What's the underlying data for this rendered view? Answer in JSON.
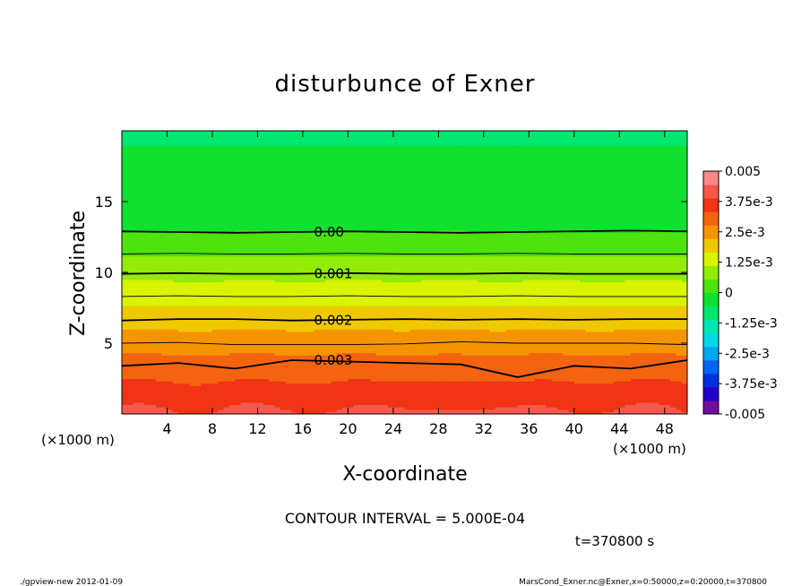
{
  "chart_data": {
    "type": "contour",
    "title": "disturbunce of Exner",
    "xlabel": "X-coordinate",
    "ylabel": "Z-coordinate",
    "x_unit": "(×1000 m)",
    "z_unit": "(×1000 m)",
    "xlim": [
      0,
      50
    ],
    "ylim": [
      0,
      20
    ],
    "x_ticks": [
      4,
      8,
      12,
      16,
      20,
      24,
      28,
      32,
      36,
      40,
      44,
      48
    ],
    "y_ticks": [
      5,
      10,
      15
    ],
    "contour_interval_text": "CONTOUR INTERVAL = 5.000E-04",
    "time_text": "t=370800 s",
    "contour_labels": [
      {
        "text": "0.00",
        "value": 0.0
      },
      {
        "text": "0.001",
        "value": 0.001
      },
      {
        "text": "0.002",
        "value": 0.002
      },
      {
        "text": "0.003",
        "value": 0.003
      }
    ],
    "colorbar": {
      "labels": [
        "0.005",
        "3.75e-3",
        "2.5e-3",
        "1.25e-3",
        "0",
        "-1.25e-3",
        "-2.5e-3",
        "-3.75e-3",
        "-0.005"
      ],
      "vmin": -0.005,
      "vmax": 0.005,
      "colors": [
        "#6f0fa0",
        "#2200cc",
        "#0030dd",
        "#0066f0",
        "#00a6f0",
        "#00d8e8",
        "#00e6b0",
        "#00e670",
        "#10e030",
        "#4ee20e",
        "#92ec08",
        "#d8f400",
        "#f0c800",
        "#f69400",
        "#f46410",
        "#f03414",
        "#f8584c",
        "#f88a86"
      ]
    },
    "contour_z_km": [
      {
        "value": 0.0,
        "z": [
          12.9,
          12.85,
          12.8,
          12.85,
          12.9,
          12.85,
          12.8,
          12.85,
          12.9,
          12.95,
          12.9
        ]
      },
      {
        "value": 0.0005,
        "z": [
          11.3,
          11.35,
          11.3,
          11.3,
          11.35,
          11.3,
          11.3,
          11.35,
          11.3,
          11.3,
          11.3
        ]
      },
      {
        "value": 0.001,
        "z": [
          9.9,
          9.95,
          9.9,
          9.9,
          9.95,
          9.9,
          9.9,
          9.95,
          9.9,
          9.9,
          9.9
        ]
      },
      {
        "value": 0.0015,
        "z": [
          8.3,
          8.35,
          8.3,
          8.3,
          8.35,
          8.3,
          8.3,
          8.35,
          8.3,
          8.3,
          8.3
        ]
      },
      {
        "value": 0.002,
        "z": [
          6.6,
          6.7,
          6.7,
          6.6,
          6.65,
          6.7,
          6.65,
          6.7,
          6.65,
          6.7,
          6.7
        ]
      },
      {
        "value": 0.0025,
        "z": [
          5.0,
          5.05,
          4.9,
          4.9,
          4.9,
          4.95,
          5.1,
          5.0,
          5.0,
          5.0,
          4.9
        ]
      },
      {
        "value": 0.003,
        "z": [
          3.4,
          3.6,
          3.2,
          3.8,
          3.7,
          3.6,
          3.5,
          2.6,
          3.4,
          3.2,
          3.8
        ]
      }
    ],
    "grid": false
  },
  "footer": {
    "left": "./gpview-new  2012-01-09",
    "right": "MarsCond_Exner.nc@Exner,x=0:50000,z=0:20000,t=370800"
  }
}
